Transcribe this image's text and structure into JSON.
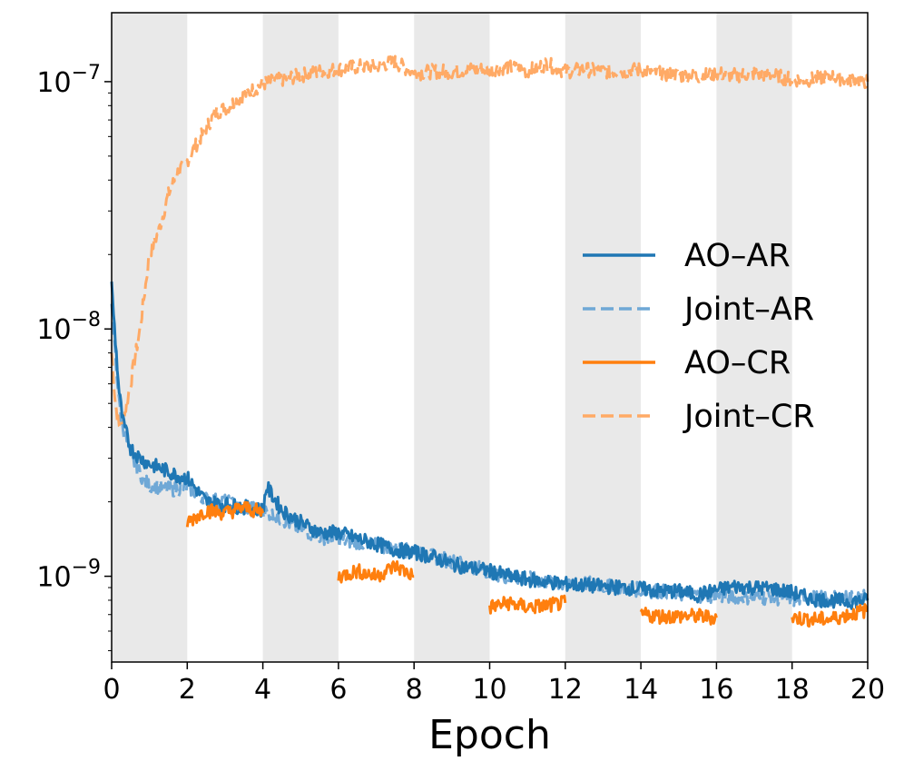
{
  "chart_data": {
    "type": "line",
    "title": "",
    "xlabel": "Epoch",
    "ylabel": "",
    "xlim": [
      0,
      20
    ],
    "ylim": [
      4.5e-10,
      1.9e-07
    ],
    "yscale": "log",
    "x_ticks": [
      0,
      2,
      4,
      6,
      8,
      10,
      12,
      14,
      16,
      18,
      20
    ],
    "x_tick_labels": [
      "0",
      "2",
      "4",
      "6",
      "8",
      "10",
      "12",
      "14",
      "16",
      "18",
      "20"
    ],
    "y_ticks": [
      {
        "value": 1e-09,
        "base": "10",
        "exponent": "−9"
      },
      {
        "value": 1e-08,
        "base": "10",
        "exponent": "−8"
      },
      {
        "value": 1e-07,
        "base": "10",
        "exponent": "−7"
      }
    ],
    "shaded_bands": [
      [
        0,
        2
      ],
      [
        4,
        6
      ],
      [
        8,
        10
      ],
      [
        12,
        14
      ],
      [
        16,
        18
      ]
    ],
    "band_color": "#e9e9e9",
    "legend_position": "center-right",
    "series": [
      {
        "name": "AO–AR",
        "color": "#1f77b4",
        "style": "solid",
        "x": [
          0.0,
          0.1,
          0.2,
          0.3,
          0.5,
          0.75,
          1.0,
          1.25,
          1.5,
          1.75,
          2.0,
          2.5,
          3.0,
          3.5,
          4.0,
          4.1,
          4.5,
          5.0,
          5.5,
          6.0,
          6.5,
          7.0,
          7.5,
          8.0,
          8.5,
          9.0,
          9.5,
          10.0,
          10.5,
          11.0,
          11.5,
          12.0,
          12.5,
          13.0,
          13.5,
          14.0,
          14.5,
          15.0,
          15.5,
          16.0,
          16.5,
          17.0,
          17.5,
          18.0,
          18.5,
          19.0,
          19.5,
          20.0
        ],
        "values": [
          1.5e-08,
          9e-09,
          5.5e-09,
          4.2e-09,
          3.3e-09,
          3e-09,
          2.85e-09,
          2.75e-09,
          2.65e-09,
          2.55e-09,
          2.5e-09,
          2e-09,
          1.95e-09,
          1.9e-09,
          1.85e-09,
          2.3e-09,
          1.85e-09,
          1.65e-09,
          1.5e-09,
          1.5e-09,
          1.42e-09,
          1.35e-09,
          1.28e-09,
          1.25e-09,
          1.2e-09,
          1.12e-09,
          1.08e-09,
          1.05e-09,
          1e-09,
          9.7e-10,
          9.5e-10,
          9.3e-10,
          9.2e-10,
          9.1e-10,
          9e-10,
          8.9e-10,
          8.7e-10,
          8.7e-10,
          8.4e-10,
          8.8e-10,
          9.1e-10,
          9e-10,
          8.9e-10,
          8.6e-10,
          8.1e-10,
          8e-10,
          7.9e-10,
          8e-10
        ]
      },
      {
        "name": "Joint–AR",
        "color": "#6fa8d6",
        "style": "dashed",
        "x": [
          0.0,
          0.1,
          0.2,
          0.3,
          0.5,
          0.75,
          1.0,
          1.25,
          1.5,
          1.75,
          2.0,
          2.5,
          3.0,
          3.5,
          4.0,
          4.5,
          5.0,
          5.5,
          6.0,
          6.5,
          7.0,
          7.5,
          8.0,
          8.5,
          9.0,
          9.5,
          10.0,
          10.5,
          11.0,
          11.5,
          12.0,
          12.5,
          13.0,
          13.5,
          14.0,
          14.5,
          15.0,
          15.5,
          16.0,
          16.5,
          17.0,
          17.5,
          18.0,
          18.5,
          19.0,
          19.5,
          20.0
        ],
        "values": [
          1.2e-08,
          8e-09,
          5e-09,
          4e-09,
          3.1e-09,
          2.6e-09,
          2.3e-09,
          2.3e-09,
          2.25e-09,
          2.25e-09,
          2.3e-09,
          2.05e-09,
          2e-09,
          1.9e-09,
          1.85e-09,
          1.7e-09,
          1.55e-09,
          1.45e-09,
          1.4e-09,
          1.38e-09,
          1.33e-09,
          1.3e-09,
          1.25e-09,
          1.2e-09,
          1.15e-09,
          1.1e-09,
          1.05e-09,
          9.9e-10,
          9.8e-10,
          9.5e-10,
          9.3e-10,
          9.4e-10,
          9.1e-10,
          9e-10,
          8.8e-10,
          8.7e-10,
          8.5e-10,
          8.4e-10,
          8.3e-10,
          8.3e-10,
          8.2e-10,
          8.2e-10,
          8e-10,
          8.2e-10,
          8.1e-10,
          8.2e-10,
          8.3e-10
        ]
      },
      {
        "name": "AO–CR",
        "color": "#ff7f0e",
        "style": "solid",
        "segments": [
          {
            "x": [
              2.0,
              2.5,
              3.0,
              3.5,
              4.0
            ],
            "values": [
              1.65e-09,
              1.85e-09,
              1.8e-09,
              1.9e-09,
              1.8e-09
            ]
          },
          {
            "x": [
              6.0,
              6.5,
              7.0,
              7.5,
              8.0
            ],
            "values": [
              1e-09,
              1.05e-09,
              1e-09,
              1.1e-09,
              1e-09
            ]
          },
          {
            "x": [
              10.0,
              10.5,
              11.0,
              11.5,
              12.0
            ],
            "values": [
              7.5e-10,
              7.8e-10,
              7.5e-10,
              7.6e-10,
              7.8e-10
            ]
          },
          {
            "x": [
              14.0,
              14.5,
              15.0,
              15.5,
              16.0
            ],
            "values": [
              7e-10,
              6.9e-10,
              6.9e-10,
              6.9e-10,
              6.8e-10
            ]
          },
          {
            "x": [
              18.0,
              18.5,
              19.0,
              19.5,
              20.0
            ],
            "values": [
              6.8e-10,
              6.7e-10,
              6.7e-10,
              7e-10,
              7.3e-10
            ]
          }
        ]
      },
      {
        "name": "Joint–CR",
        "color": "#ffaa66",
        "style": "dashed",
        "x": [
          0.0,
          0.1,
          0.2,
          0.3,
          0.5,
          0.75,
          1.0,
          1.25,
          1.5,
          1.75,
          2.0,
          2.25,
          2.5,
          2.75,
          3.0,
          3.5,
          4.0,
          4.5,
          5.0,
          5.5,
          6.0,
          6.5,
          7.0,
          7.5,
          8.0,
          8.5,
          9.0,
          9.5,
          10.0,
          10.5,
          11.0,
          11.5,
          12.0,
          12.5,
          13.0,
          13.5,
          14.0,
          14.5,
          15.0,
          15.5,
          16.0,
          16.5,
          17.0,
          17.5,
          18.0,
          18.5,
          19.0,
          19.5,
          20.0
        ],
        "values": [
          8e-09,
          5e-09,
          4e-09,
          4.2e-09,
          6e-09,
          1e-08,
          2e-08,
          2.5e-08,
          3.5e-08,
          4.3e-08,
          4.8e-08,
          5.6e-08,
          6.5e-08,
          7.5e-08,
          7.8e-08,
          8.8e-08,
          9.8e-08,
          1.02e-07,
          1.06e-07,
          1.1e-07,
          1.12e-07,
          1.15e-07,
          1.16e-07,
          1.2e-07,
          1.08e-07,
          1.1e-07,
          1.1e-07,
          1.12e-07,
          1.12e-07,
          1.15e-07,
          1.1e-07,
          1.18e-07,
          1.1e-07,
          1.12e-07,
          1.1e-07,
          1.1e-07,
          1.12e-07,
          1.08e-07,
          1.06e-07,
          1.05e-07,
          1.08e-07,
          1.06e-07,
          1.08e-07,
          1.06e-07,
          1.02e-07,
          1.02e-07,
          1.05e-07,
          1.02e-07,
          1e-07
        ]
      }
    ]
  }
}
